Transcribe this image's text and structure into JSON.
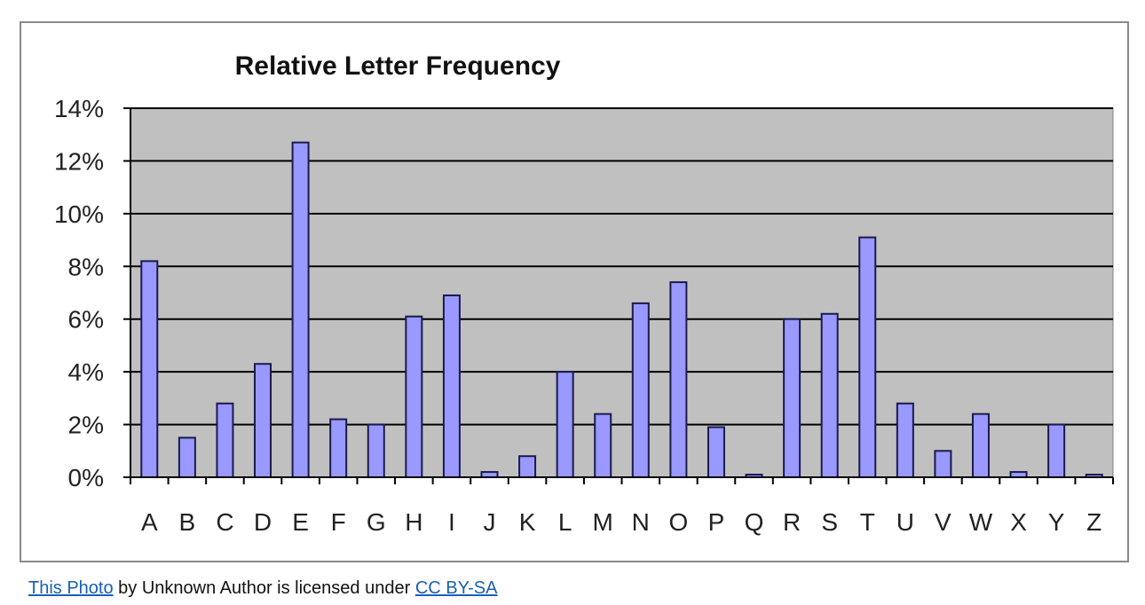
{
  "chart_data": {
    "type": "bar",
    "title": "Relative Letter Frequency",
    "xlabel": "",
    "ylabel": "",
    "categories": [
      "A",
      "B",
      "C",
      "D",
      "E",
      "F",
      "G",
      "H",
      "I",
      "J",
      "K",
      "L",
      "M",
      "N",
      "O",
      "P",
      "Q",
      "R",
      "S",
      "T",
      "U",
      "V",
      "W",
      "X",
      "Y",
      "Z"
    ],
    "values": [
      8.2,
      1.5,
      2.8,
      4.3,
      12.7,
      2.2,
      2.0,
      6.1,
      6.9,
      0.2,
      0.8,
      4.0,
      2.4,
      6.6,
      7.4,
      1.9,
      0.1,
      6.0,
      6.2,
      9.1,
      2.8,
      1.0,
      2.4,
      0.2,
      2.0,
      0.1
    ],
    "ylim": [
      0,
      14
    ],
    "yticks": [
      0,
      2,
      4,
      6,
      8,
      10,
      12,
      14
    ],
    "ytick_labels": [
      "0%",
      "2%",
      "4%",
      "6%",
      "8%",
      "10%",
      "12%",
      "14%"
    ],
    "grid": true,
    "legend": "none",
    "colors": {
      "bar_fill": "#9999ff",
      "bar_stroke": "#1a1a4d",
      "plot_background": "#c0c0c0",
      "gridline": "#000000"
    }
  },
  "caption": {
    "link1": "This Photo",
    "middle": " by Unknown Author is licensed under ",
    "link2": "CC BY-SA"
  }
}
